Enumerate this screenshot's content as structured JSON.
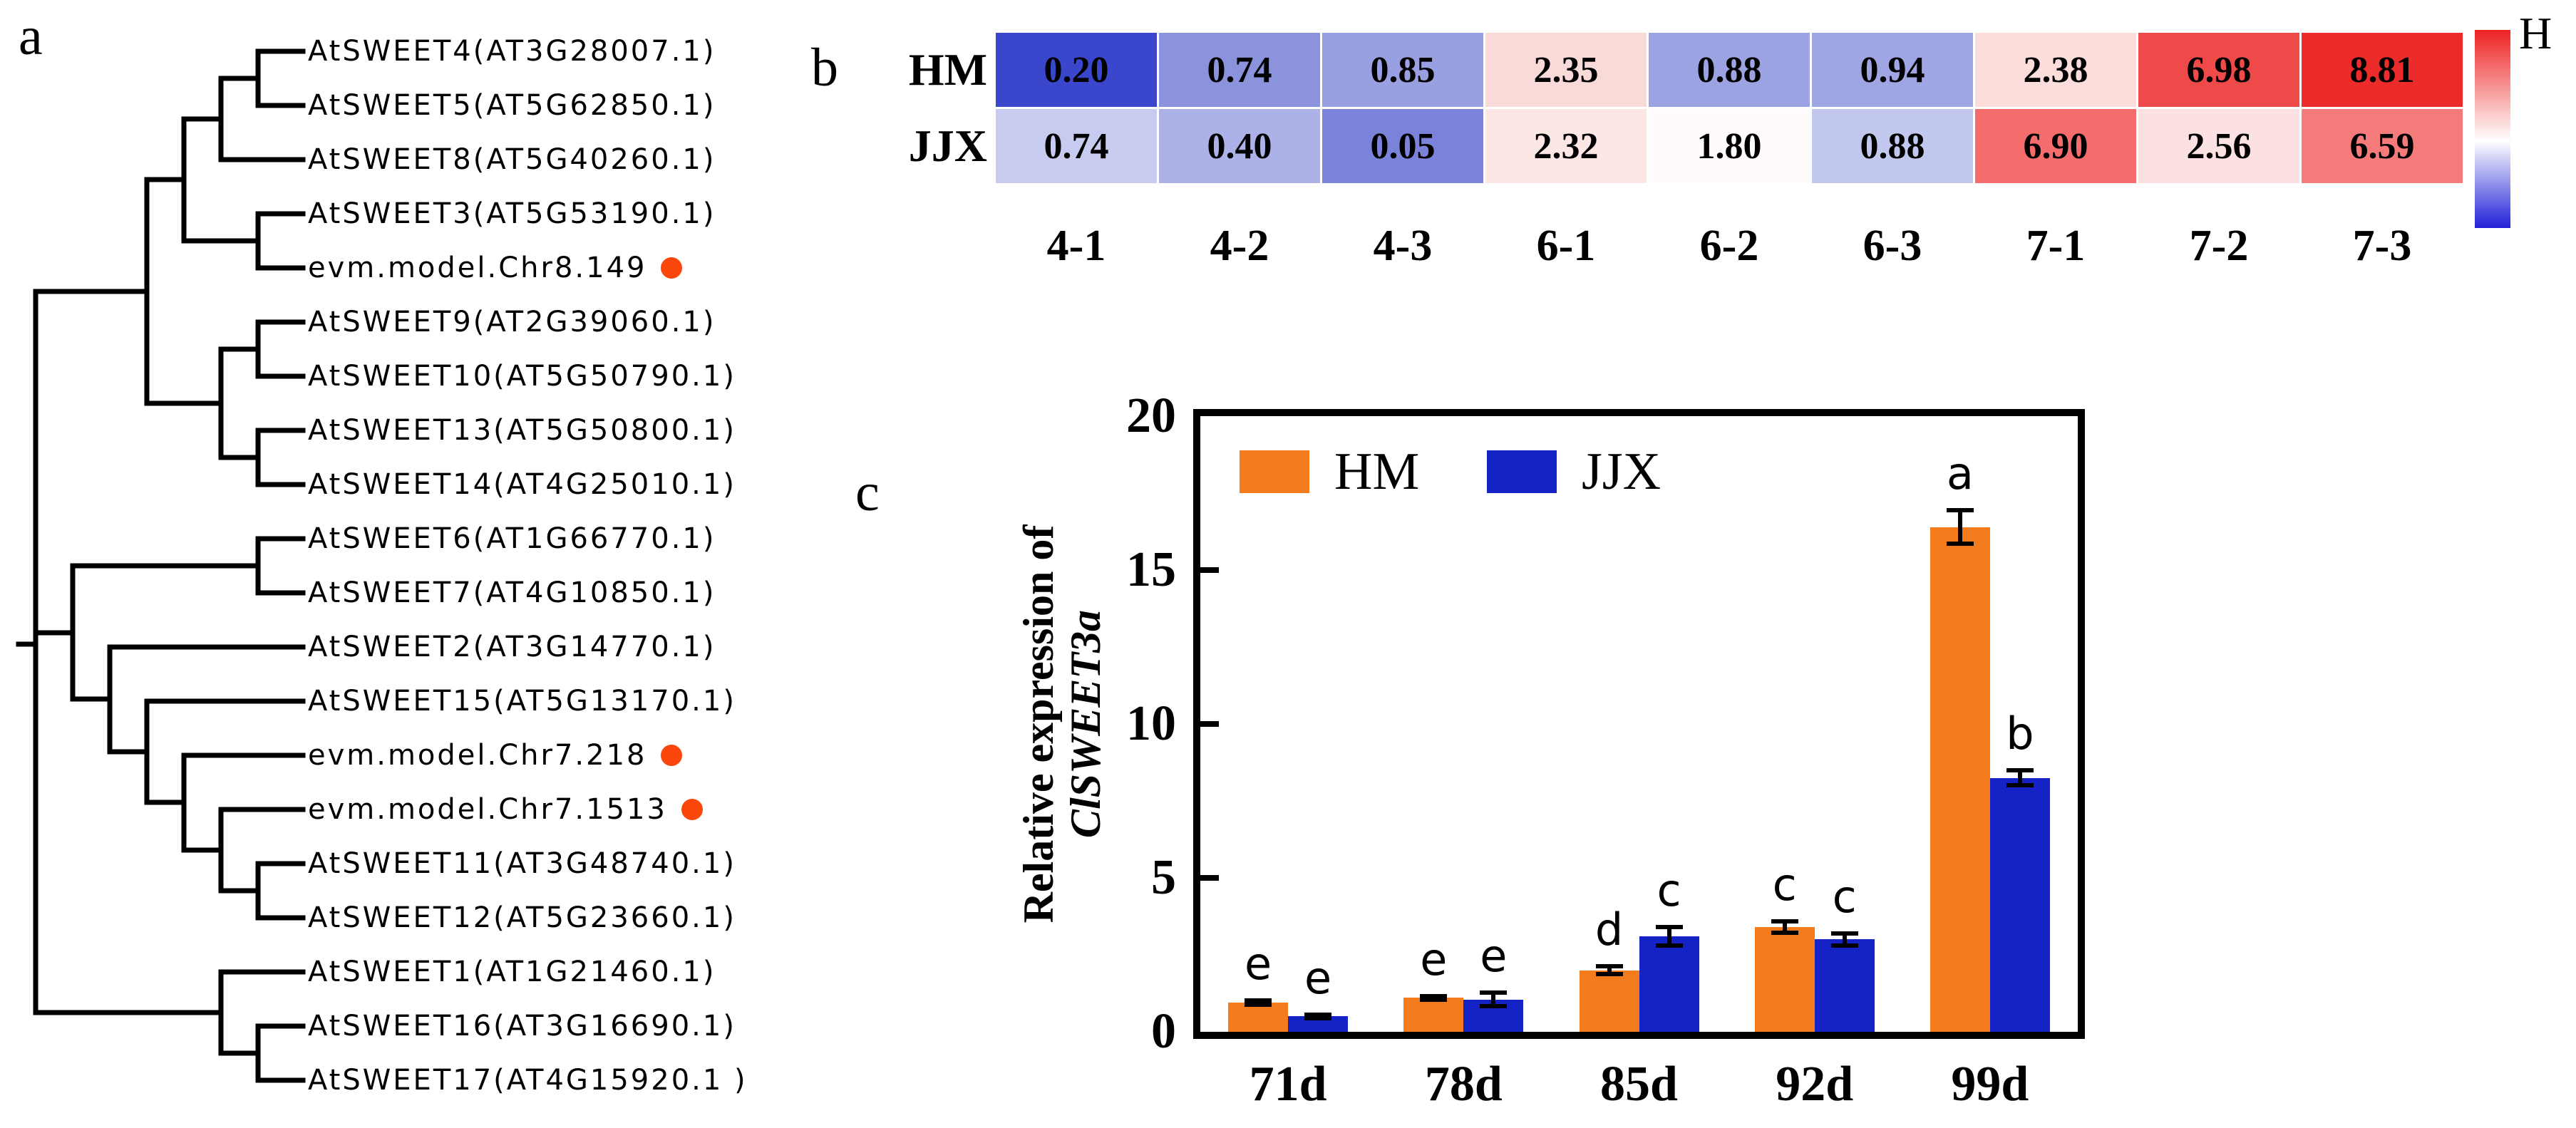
{
  "figure": {
    "panel_a_label": "a",
    "panel_b_label": "b",
    "panel_c_label": "c"
  },
  "tree": {
    "marker_color": "#fb470c",
    "leaves": [
      {
        "label": "AtSWEET4(AT3G28007.1)",
        "marker": false
      },
      {
        "label": "AtSWEET5(AT5G62850.1)",
        "marker": false
      },
      {
        "label": "AtSWEET8(AT5G40260.1)",
        "marker": false
      },
      {
        "label": "AtSWEET3(AT5G53190.1)",
        "marker": false
      },
      {
        "label": "evm.model.Chr8.149",
        "marker": true
      },
      {
        "label": "AtSWEET9(AT2G39060.1)",
        "marker": false
      },
      {
        "label": "AtSWEET10(AT5G50790.1)",
        "marker": false
      },
      {
        "label": "AtSWEET13(AT5G50800.1)",
        "marker": false
      },
      {
        "label": "AtSWEET14(AT4G25010.1)",
        "marker": false
      },
      {
        "label": "AtSWEET6(AT1G66770.1)",
        "marker": false
      },
      {
        "label": "AtSWEET7(AT4G10850.1)",
        "marker": false
      },
      {
        "label": "AtSWEET2(AT3G14770.1)",
        "marker": false
      },
      {
        "label": "AtSWEET15(AT5G13170.1)",
        "marker": false
      },
      {
        "label": "evm.model.Chr7.218",
        "marker": true
      },
      {
        "label": "evm.model.Chr7.1513",
        "marker": true
      },
      {
        "label": "AtSWEET11(AT3G48740.1)",
        "marker": false
      },
      {
        "label": "AtSWEET12(AT5G23660.1)",
        "marker": false
      },
      {
        "label": "AtSWEET1(AT1G21460.1)",
        "marker": false
      },
      {
        "label": "AtSWEET16(AT3G16690.1)",
        "marker": false
      },
      {
        "label": "AtSWEET17(AT4G15920.1 )",
        "marker": false
      }
    ]
  },
  "heatmap": {
    "row_labels": [
      "HM",
      "JJX"
    ],
    "col_labels": [
      "4-1",
      "4-2",
      "4-3",
      "6-1",
      "6-2",
      "6-3",
      "7-1",
      "7-2",
      "7-3"
    ],
    "values": [
      [
        "0.20",
        "0.74",
        "0.85",
        "2.35",
        "0.88",
        "0.94",
        "2.38",
        "6.98",
        "8.81"
      ],
      [
        "0.74",
        "0.40",
        "0.05",
        "2.32",
        "1.80",
        "0.88",
        "6.90",
        "2.56",
        "6.59"
      ]
    ],
    "cell_colors": [
      [
        "#3a46cb",
        "#8b93dd",
        "#98a0e2",
        "#f8dad9",
        "#9ba3e2",
        "#9fa6e3",
        "#fbdddc",
        "#ef4a4a",
        "#ed2b2b"
      ],
      [
        "#c7cbf0",
        "#acb2e7",
        "#7a83d9",
        "#fce7e5",
        "#fefbfa",
        "#c2c7ee",
        "#f56c6c",
        "#fbe1e2",
        "#f47b79"
      ]
    ],
    "colorbar": {
      "label": "H",
      "top_color": "#ee2222",
      "mid_color": "#ffffff",
      "bottom_color": "#2020d8"
    }
  },
  "barchart": {
    "ylabel_line1": "Relative expression of",
    "ylabel_line2": "ClSWEET3a",
    "yticks": [
      "0",
      "5",
      "10",
      "15",
      "20"
    ],
    "ymax": 20,
    "categories": [
      "71d",
      "78d",
      "85d",
      "92d",
      "99d"
    ],
    "series": [
      {
        "name": "HM",
        "color": "#f57c1c",
        "values": [
          0.95,
          1.1,
          2.0,
          3.4,
          16.4
        ],
        "errors": [
          0.08,
          0.06,
          0.12,
          0.18,
          0.55
        ],
        "letters": [
          "e",
          "e",
          "d",
          "c",
          "a"
        ]
      },
      {
        "name": "JJX",
        "color": "#1523c6",
        "values": [
          0.5,
          1.05,
          3.1,
          3.0,
          8.25
        ],
        "errors": [
          0.06,
          0.22,
          0.3,
          0.2,
          0.25
        ],
        "letters": [
          "e",
          "e",
          "c",
          "c",
          "b"
        ]
      }
    ]
  },
  "chart_data": [
    {
      "type": "heatmap",
      "title": "",
      "rows": [
        "HM",
        "JJX"
      ],
      "columns": [
        "4-1",
        "4-2",
        "4-3",
        "6-1",
        "6-2",
        "6-3",
        "7-1",
        "7-2",
        "7-3"
      ],
      "values": [
        [
          0.2,
          0.74,
          0.85,
          2.35,
          0.88,
          0.94,
          2.38,
          6.98,
          8.81
        ],
        [
          0.74,
          0.4,
          0.05,
          2.32,
          1.8,
          0.88,
          6.9,
          2.56,
          6.59
        ]
      ],
      "colormap": "blue-white-red",
      "colorbar_label": "H",
      "legend_position": "right"
    },
    {
      "type": "bar",
      "title": "",
      "categories": [
        "71d",
        "78d",
        "85d",
        "92d",
        "99d"
      ],
      "series": [
        {
          "name": "HM",
          "values": [
            0.95,
            1.1,
            2.0,
            3.4,
            16.4
          ],
          "errors": [
            0.08,
            0.06,
            0.12,
            0.18,
            0.55
          ],
          "sig_letters": [
            "e",
            "e",
            "d",
            "c",
            "a"
          ]
        },
        {
          "name": "JJX",
          "values": [
            0.5,
            1.05,
            3.1,
            3.0,
            8.25
          ],
          "errors": [
            0.06,
            0.22,
            0.3,
            0.2,
            0.25
          ],
          "sig_letters": [
            "e",
            "e",
            "c",
            "c",
            "b"
          ]
        }
      ],
      "xlabel": "",
      "ylabel": "Relative expression of ClSWEET3a",
      "ylim": [
        0,
        20
      ],
      "yticks": [
        0,
        5,
        10,
        15,
        20
      ],
      "grid": false,
      "legend_position": "top-left"
    }
  ]
}
